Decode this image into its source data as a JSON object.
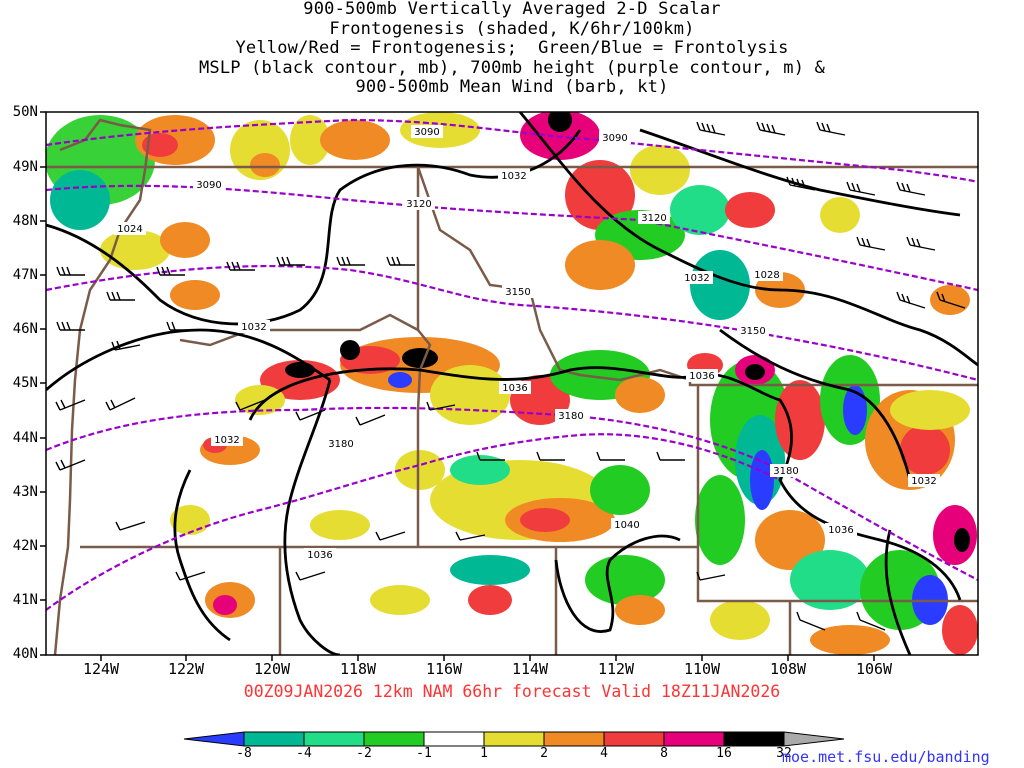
{
  "title_lines": [
    "900-500mb Vertically Averaged 2-D Scalar",
    "Frontogenesis (shaded, K/6hr/100km)",
    "Yellow/Red = Frontogenesis;  Green/Blue = Frontolysis",
    "MSLP (black contour, mb), 700mb height (purple contour, m) &",
    "900-500mb Mean Wind (barb, kt)"
  ],
  "lat_labels": [
    "50N",
    "49N",
    "48N",
    "47N",
    "46N",
    "45N",
    "44N",
    "43N",
    "42N",
    "41N",
    "40N"
  ],
  "lon_labels": [
    "124W",
    "122W",
    "120W",
    "118W",
    "116W",
    "114W",
    "112W",
    "110W",
    "108W",
    "106W"
  ],
  "valid_text": "00Z09JAN2026 12km NAM 66hr forecast Valid 18Z11JAN2026",
  "colorbar": {
    "labels": [
      "-8",
      "-4",
      "-2",
      "-1",
      "1",
      "2",
      "4",
      "8",
      "16",
      "32"
    ],
    "colors": [
      "#2a3cff",
      "#00b894",
      "#22dd88",
      "#22cc22",
      "#ffffff",
      "#e6dd33",
      "#f08a24",
      "#f03c3c",
      "#e6007a",
      "#000000",
      "#aaaaaa"
    ]
  },
  "pressure_labels": [
    "1024",
    "1032",
    "1032",
    "1032",
    "1028",
    "1036",
    "1036",
    "1032",
    "1036",
    "1032",
    "1040",
    "1036"
  ],
  "height_labels": [
    "3090",
    "3090",
    "3090",
    "3120",
    "3120",
    "3150",
    "3150",
    "3180",
    "3180",
    "3180"
  ],
  "credit": "moe.met.fsu.edu/banding"
}
